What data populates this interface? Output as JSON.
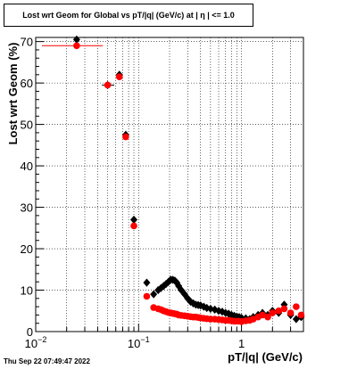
{
  "timestamp": "Thu Sep 22 07:49:47 2022",
  "chart_data": {
    "type": "scatter",
    "title": "Lost wrt Geom for Global vs pT/|q| (GeV/c) at |  η  | <= 1.0",
    "xlabel": "pT/|q| (GeV/c)",
    "ylabel": "Lost wrt Geom (%)",
    "xscale": "log",
    "xlim": [
      0.01,
      4
    ],
    "ylim": [
      0,
      71
    ],
    "grid": true,
    "x_ticks": [
      {
        "value": 0.01,
        "base": "10",
        "exp": "−2"
      },
      {
        "value": 0.1,
        "base": "10",
        "exp": "−1"
      },
      {
        "value": 1,
        "base": "1",
        "exp": ""
      }
    ],
    "y_ticks": [
      0,
      10,
      20,
      30,
      40,
      50,
      60,
      70
    ],
    "series": [
      {
        "color": "#000000",
        "x": [
          0.025,
          0.05,
          0.065,
          0.075,
          0.09,
          0.12,
          0.14,
          0.155,
          0.165,
          0.175,
          0.185,
          0.195,
          0.205,
          0.215,
          0.225,
          0.235,
          0.245,
          0.26,
          0.28,
          0.3,
          0.32,
          0.34,
          0.36,
          0.38,
          0.4,
          0.43,
          0.46,
          0.5,
          0.55,
          0.6,
          0.65,
          0.7,
          0.75,
          0.8,
          0.85,
          0.9,
          0.95,
          1.0,
          1.1,
          1.2,
          1.3,
          1.45,
          1.6,
          1.8,
          2.0,
          2.3,
          2.6,
          3.0,
          3.4,
          3.8
        ],
        "y": [
          70.5,
          59.5,
          62.0,
          47.5,
          27.0,
          11.8,
          9.0,
          10.0,
          10.5,
          11.0,
          11.5,
          12.0,
          12.5,
          12.5,
          12.3,
          11.8,
          11.0,
          10.0,
          9.0,
          8.0,
          7.2,
          6.8,
          6.5,
          6.4,
          6.3,
          6.0,
          5.7,
          5.5,
          5.3,
          5.0,
          4.8,
          4.5,
          4.3,
          4.0,
          3.8,
          3.6,
          3.5,
          3.3,
          3.2,
          3.0,
          3.5,
          4.0,
          4.5,
          4.0,
          5.0,
          4.5,
          6.5,
          4.0,
          3.0,
          3.5
        ]
      },
      {
        "color": "#ff0000",
        "x": [
          0.025,
          0.05,
          0.065,
          0.075,
          0.09,
          0.12,
          0.14,
          0.155,
          0.165,
          0.175,
          0.185,
          0.195,
          0.205,
          0.215,
          0.225,
          0.235,
          0.245,
          0.26,
          0.28,
          0.3,
          0.32,
          0.34,
          0.36,
          0.38,
          0.4,
          0.43,
          0.46,
          0.5,
          0.55,
          0.6,
          0.65,
          0.7,
          0.75,
          0.8,
          0.85,
          0.9,
          0.95,
          1.0,
          1.1,
          1.2,
          1.3,
          1.45,
          1.6,
          1.8,
          2.0,
          2.3,
          2.6,
          3.0,
          3.4,
          3.8
        ],
        "y": [
          69.0,
          59.5,
          61.5,
          47.0,
          25.5,
          8.5,
          5.8,
          5.5,
          5.3,
          5.0,
          4.8,
          4.6,
          4.5,
          4.4,
          4.3,
          4.2,
          4.0,
          3.9,
          3.8,
          3.7,
          3.6,
          3.5,
          3.5,
          3.4,
          3.3,
          3.2,
          3.1,
          3.0,
          3.0,
          2.9,
          2.8,
          2.7,
          2.7,
          2.6,
          2.5,
          2.5,
          2.5,
          2.4,
          2.6,
          2.7,
          3.0,
          3.5,
          4.0,
          3.5,
          4.5,
          5.0,
          5.5,
          4.5,
          6.0,
          4.0
        ]
      }
    ],
    "xerr_segments": [
      {
        "series": 1,
        "x0": 0.0115,
        "x1": 0.045,
        "y": 69.0
      },
      {
        "series": 0,
        "x0": 0.044,
        "x1": 0.058,
        "y": 59.5
      }
    ]
  }
}
